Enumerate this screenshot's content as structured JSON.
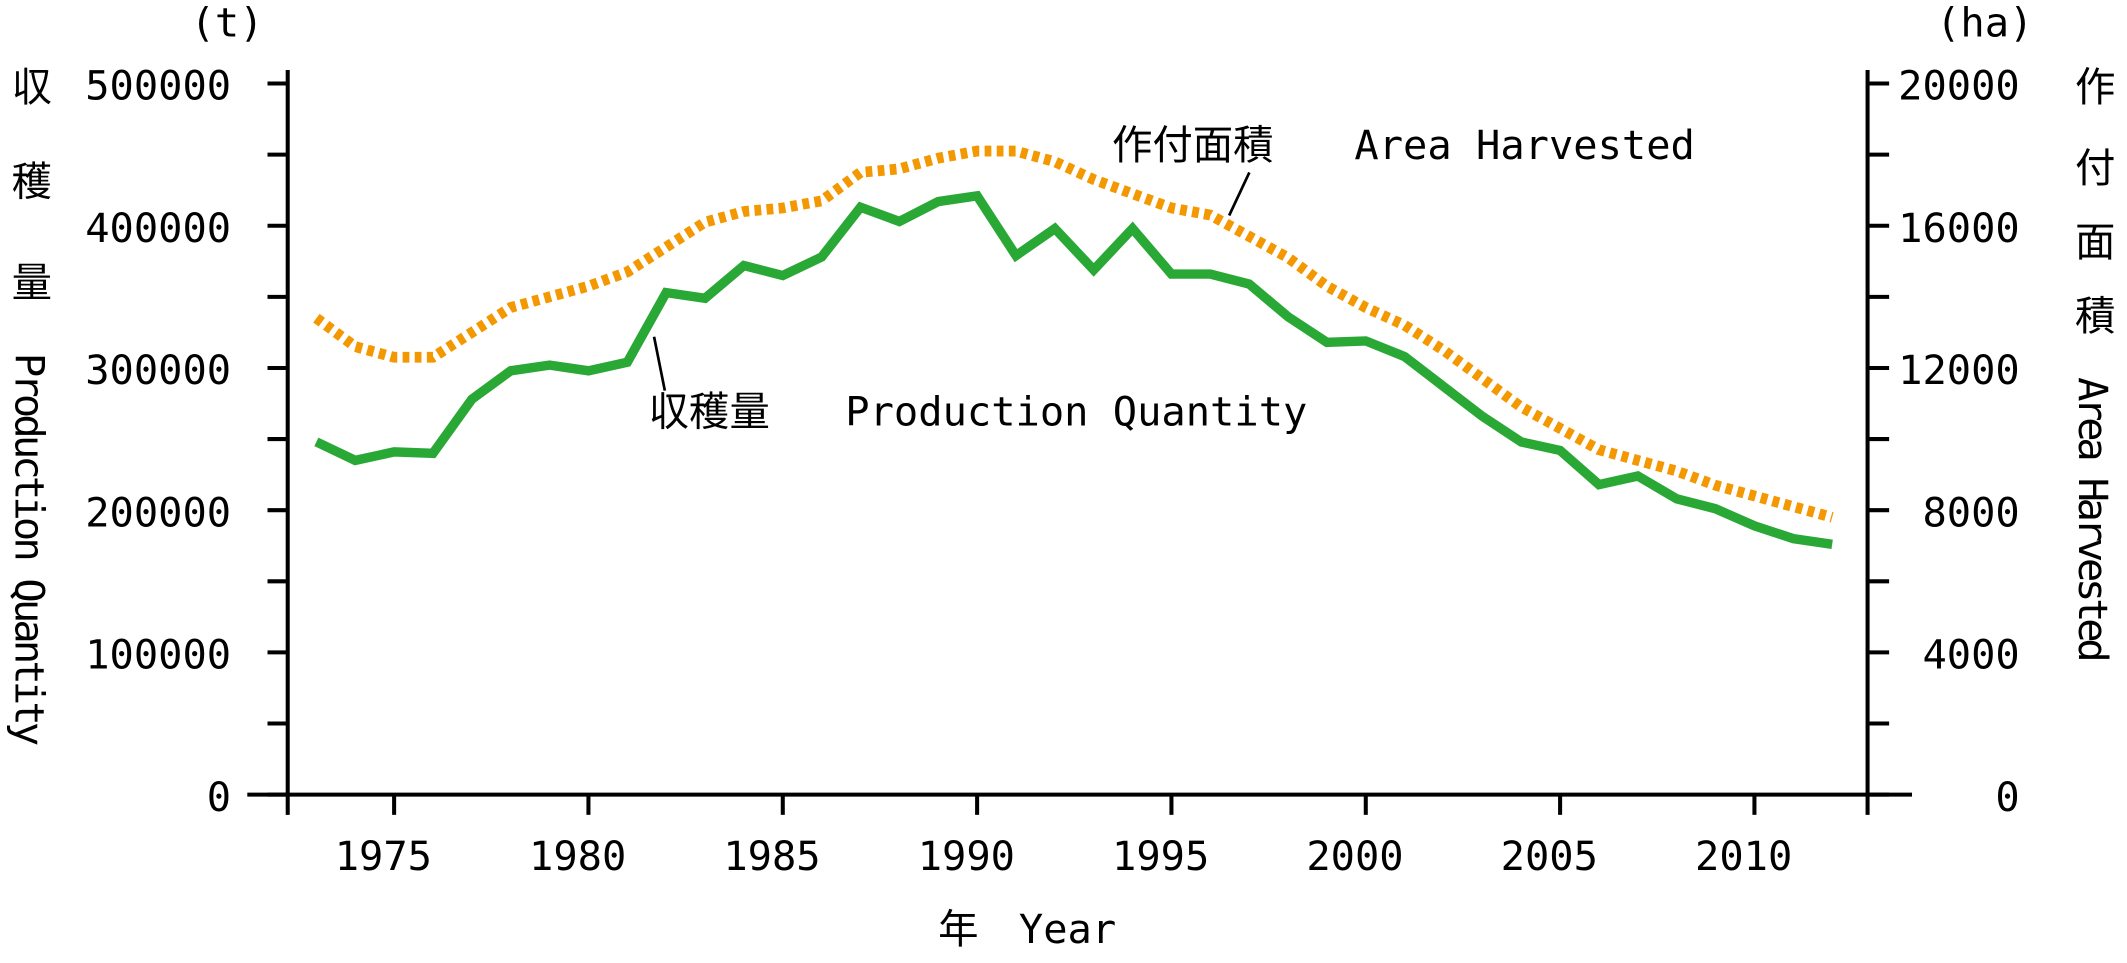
{
  "chart_data": {
    "type": "line",
    "x": [
      1973,
      1974,
      1975,
      1976,
      1977,
      1978,
      1979,
      1980,
      1981,
      1982,
      1983,
      1984,
      1985,
      1986,
      1987,
      1988,
      1989,
      1990,
      1991,
      1992,
      1993,
      1994,
      1995,
      1996,
      1997,
      1998,
      1999,
      2000,
      2001,
      2002,
      2003,
      2004,
      2005,
      2006,
      2007,
      2008,
      2009,
      2010,
      2011,
      2012
    ],
    "series": [
      {
        "name": "収穫量 Production Quantity",
        "label_jp": "収穫量",
        "label_en": "Production Quantity",
        "axis": "left",
        "color": "#2aa836",
        "style": "solid",
        "values": [
          248000,
          235000,
          241000,
          240000,
          278000,
          298000,
          302000,
          298000,
          304000,
          353000,
          349000,
          372000,
          365000,
          378000,
          413000,
          403000,
          417000,
          421000,
          379000,
          398000,
          369000,
          398000,
          366000,
          366000,
          359000,
          336000,
          318000,
          319000,
          308000,
          287000,
          266000,
          248000,
          242000,
          218000,
          224000,
          208000,
          201000,
          189000,
          180000,
          176000
        ]
      },
      {
        "name": "作付面積 Area Harvested",
        "label_jp": "作付面積",
        "label_en": "Area Harvested",
        "axis": "right",
        "color": "#f39800",
        "style": "dotted",
        "values": [
          13400,
          12600,
          12300,
          12300,
          13000,
          13700,
          14000,
          14300,
          14700,
          15400,
          16100,
          16400,
          16500,
          16700,
          17500,
          17600,
          17900,
          18100,
          18100,
          17800,
          17300,
          16900,
          16500,
          16300,
          15700,
          15100,
          14300,
          13700,
          13200,
          12500,
          11700,
          10900,
          10300,
          9700,
          9400,
          9100,
          8700,
          8400,
          8100,
          7800
        ]
      }
    ],
    "xlabel": "年　Year",
    "ylabel_left": {
      "jp": [
        "収",
        "穫",
        "量"
      ],
      "en": "Production Quantity",
      "unit": "(t)"
    },
    "ylabel_right": {
      "jp": [
        "作",
        "付",
        "面",
        "積"
      ],
      "en": "Area Harvested",
      "unit": "(ha)"
    },
    "xticks": [
      1975,
      1980,
      1985,
      1990,
      1995,
      2000,
      2005,
      2010
    ],
    "yticks_left": [
      "0",
      "100000",
      "200000",
      "300000",
      "400000",
      "500000"
    ],
    "yticks_right": [
      "0",
      "4000",
      "8000",
      "12000",
      "16000",
      "20000"
    ],
    "ylim_left": [
      0,
      500000
    ],
    "ylim_right": [
      0,
      20000
    ],
    "xlim": [
      1972.3,
      2012.9
    ],
    "grid": false
  }
}
